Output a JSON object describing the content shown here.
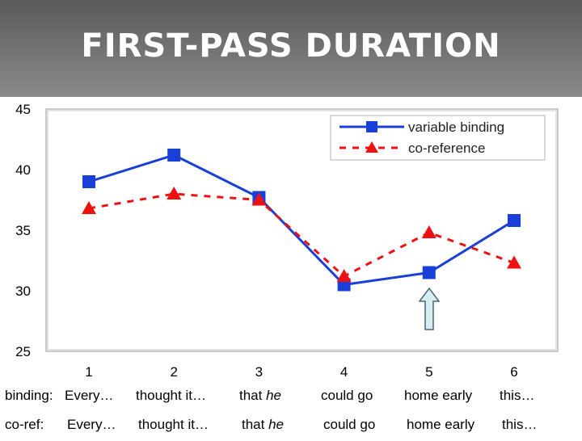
{
  "slide": {
    "title": "FIRST-PASS DURATION"
  },
  "chart_data": {
    "type": "line",
    "categories": [
      "1",
      "2",
      "3",
      "4",
      "5",
      "6"
    ],
    "ylim": [
      25,
      45
    ],
    "yticks": [
      25,
      30,
      35,
      40,
      45
    ],
    "grid": false,
    "legend": "top-right",
    "series": [
      {
        "name": "variable binding",
        "values": [
          39.0,
          41.2,
          37.7,
          30.5,
          31.5,
          35.8
        ],
        "color": "#1a3fd8",
        "dash": "solid",
        "marker": "square"
      },
      {
        "name": "co-reference",
        "values": [
          36.8,
          38.0,
          37.5,
          31.2,
          34.8,
          32.3
        ],
        "color": "#ee1111",
        "dash": "dashed",
        "marker": "triangle"
      }
    ]
  },
  "rows": [
    {
      "label": "binding:",
      "cells": [
        "Every…",
        "thought it…",
        "that ",
        "could go",
        "home early",
        "this…"
      ],
      "emph": "he"
    },
    {
      "label": "co-ref:",
      "cells": [
        "Every…",
        "thought it…",
        "that ",
        "could go",
        "home early",
        "this…"
      ],
      "emph": "he"
    }
  ]
}
